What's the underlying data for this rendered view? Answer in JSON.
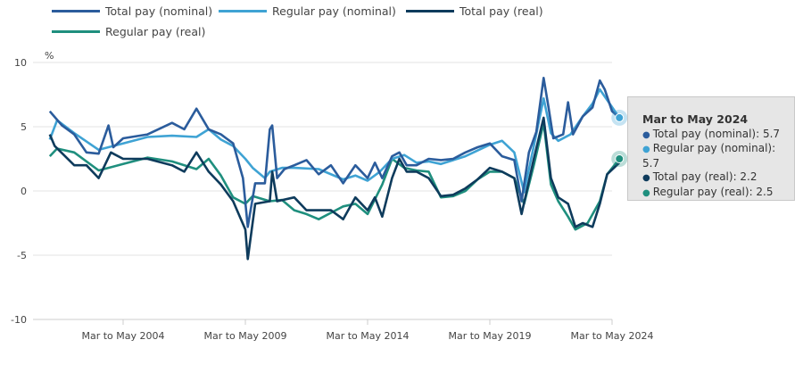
{
  "chart_data": {
    "type": "line",
    "ylabel": "%",
    "ylim": [
      -10,
      10
    ],
    "yticks": [
      10,
      5,
      0,
      -5,
      -10
    ],
    "xticks": [
      "Mar to May 2004",
      "Mar to May 2009",
      "Mar to May 2014",
      "Mar to May 2019",
      "Mar to May 2024"
    ],
    "grid": true,
    "legend": "top",
    "series": [
      {
        "name": "Total pay (nominal)",
        "color": "#2b5c9c",
        "x": [
          2001.0,
          2001.5,
          2002.0,
          2002.5,
          2003.0,
          2003.4,
          2003.6,
          2004.0,
          2005.0,
          2006.0,
          2006.5,
          2007.0,
          2007.5,
          2008.0,
          2008.5,
          2008.9,
          2009.1,
          2009.4,
          2009.8,
          2010.0,
          2010.1,
          2010.3,
          2010.6,
          2011.0,
          2011.5,
          2012.0,
          2012.5,
          2013.0,
          2013.5,
          2014.0,
          2014.3,
          2014.6,
          2015.0,
          2015.3,
          2015.6,
          2016.0,
          2016.5,
          2017.0,
          2017.5,
          2018.0,
          2018.5,
          2019.0,
          2019.5,
          2020.0,
          2020.3,
          2020.6,
          2020.9,
          2021.2,
          2021.4,
          2021.6,
          2022.0,
          2022.2,
          2022.4,
          2022.8,
          2023.2,
          2023.5,
          2023.7,
          2024.0,
          2024.3
        ],
        "y": [
          6.2,
          5.1,
          4.4,
          3.0,
          2.9,
          5.1,
          3.4,
          4.1,
          4.4,
          5.3,
          4.8,
          6.4,
          4.8,
          4.4,
          3.7,
          1.0,
          -2.8,
          0.6,
          0.6,
          4.8,
          5.1,
          1.0,
          1.7,
          2.0,
          2.4,
          1.3,
          2.0,
          0.6,
          2.0,
          1.0,
          2.2,
          1.0,
          2.7,
          3.0,
          2.0,
          2.0,
          2.5,
          2.4,
          2.5,
          3.0,
          3.4,
          3.7,
          2.7,
          2.4,
          -0.8,
          3.0,
          4.6,
          8.8,
          6.5,
          4.1,
          4.4,
          6.9,
          4.4,
          5.8,
          6.5,
          8.6,
          7.9,
          6.2,
          5.7
        ]
      },
      {
        "name": "Regular pay (nominal)",
        "color": "#3fa3d4",
        "x": [
          2001.0,
          2001.3,
          2002.0,
          2003.0,
          2004.0,
          2005.0,
          2006.0,
          2007.0,
          2007.5,
          2008.0,
          2008.5,
          2009.0,
          2009.3,
          2009.8,
          2010.0,
          2010.5,
          2011.0,
          2012.0,
          2013.0,
          2013.5,
          2014.0,
          2014.5,
          2015.0,
          2015.5,
          2016.0,
          2016.5,
          2017.0,
          2018.0,
          2019.0,
          2019.5,
          2020.0,
          2020.4,
          2020.8,
          2021.2,
          2021.5,
          2021.8,
          2022.3,
          2022.8,
          2023.2,
          2023.5,
          2023.9,
          2024.3
        ],
        "y": [
          4.0,
          5.5,
          4.5,
          3.2,
          3.7,
          4.2,
          4.3,
          4.2,
          4.8,
          4.0,
          3.5,
          2.5,
          1.8,
          1.0,
          1.5,
          1.8,
          1.8,
          1.7,
          0.9,
          1.2,
          0.8,
          1.5,
          2.5,
          2.8,
          2.2,
          2.3,
          2.1,
          2.7,
          3.6,
          3.9,
          3.0,
          -0.1,
          3.5,
          7.2,
          4.5,
          3.9,
          4.4,
          5.8,
          6.8,
          7.9,
          6.8,
          5.7
        ]
      },
      {
        "name": "Total pay (real)",
        "color": "#0e3b5c",
        "x": [
          2001.0,
          2001.2,
          2002.0,
          2002.5,
          2003.0,
          2003.5,
          2004.0,
          2005.0,
          2006.0,
          2006.5,
          2007.0,
          2007.5,
          2008.0,
          2008.5,
          2009.0,
          2009.1,
          2009.4,
          2010.0,
          2010.1,
          2010.3,
          2011.0,
          2011.5,
          2012.0,
          2012.5,
          2013.0,
          2013.5,
          2014.0,
          2014.3,
          2014.6,
          2015.0,
          2015.3,
          2015.6,
          2016.0,
          2016.5,
          2017.0,
          2017.5,
          2018.0,
          2018.5,
          2019.0,
          2019.5,
          2020.0,
          2020.3,
          2020.8,
          2021.2,
          2021.5,
          2021.8,
          2022.2,
          2022.5,
          2022.8,
          2023.2,
          2023.5,
          2023.8,
          2024.3
        ],
        "y": [
          4.4,
          3.5,
          2.0,
          2.0,
          1.0,
          3.0,
          2.5,
          2.5,
          2.0,
          1.5,
          3.0,
          1.5,
          0.5,
          -0.8,
          -3.0,
          -5.3,
          -1.0,
          -0.8,
          1.5,
          -0.8,
          -0.5,
          -1.5,
          -1.5,
          -1.5,
          -2.2,
          -0.5,
          -1.5,
          -0.5,
          -2.0,
          1.0,
          2.5,
          1.5,
          1.5,
          1.0,
          -0.4,
          -0.3,
          0.2,
          0.9,
          1.8,
          1.5,
          1.0,
          -1.8,
          2.5,
          5.7,
          1.0,
          -0.5,
          -1.0,
          -2.8,
          -2.5,
          -2.8,
          -1.0,
          1.3,
          2.2
        ]
      },
      {
        "name": "Regular pay (real)",
        "color": "#1f8f7e",
        "x": [
          2001.0,
          2001.3,
          2002.0,
          2003.0,
          2004.0,
          2005.0,
          2006.0,
          2007.0,
          2007.5,
          2008.0,
          2008.5,
          2009.0,
          2009.3,
          2010.0,
          2010.5,
          2011.0,
          2011.5,
          2012.0,
          2013.0,
          2013.5,
          2014.0,
          2014.6,
          2015.0,
          2015.5,
          2016.0,
          2016.5,
          2017.0,
          2017.5,
          2018.0,
          2018.5,
          2019.0,
          2019.5,
          2020.0,
          2020.4,
          2020.8,
          2021.2,
          2021.5,
          2021.8,
          2022.2,
          2022.5,
          2023.0,
          2023.5,
          2023.8,
          2024.3
        ],
        "y": [
          2.7,
          3.3,
          3.0,
          1.6,
          2.1,
          2.6,
          2.3,
          1.7,
          2.5,
          1.2,
          -0.5,
          -1.0,
          -0.4,
          -0.8,
          -0.7,
          -1.5,
          -1.8,
          -2.2,
          -1.2,
          -1.0,
          -1.8,
          0.5,
          2.5,
          1.8,
          1.6,
          1.5,
          -0.5,
          -0.4,
          0.0,
          0.9,
          1.5,
          1.5,
          1.0,
          -1.0,
          2.0,
          5.3,
          0.5,
          -0.8,
          -2.0,
          -3.0,
          -2.5,
          -0.8,
          1.3,
          2.5
        ]
      }
    ]
  },
  "tooltip": {
    "title": "Mar to May 2024",
    "rows": [
      {
        "label": "Total pay (nominal): 5.7",
        "color": "#2b5c9c"
      },
      {
        "label": "Regular pay (nominal): 5.7",
        "color": "#3fa3d4"
      },
      {
        "label": "Total pay (real): 2.2",
        "color": "#0e3b5c"
      },
      {
        "label": "Regular pay (real): 2.5",
        "color": "#1f8f7e"
      }
    ]
  }
}
